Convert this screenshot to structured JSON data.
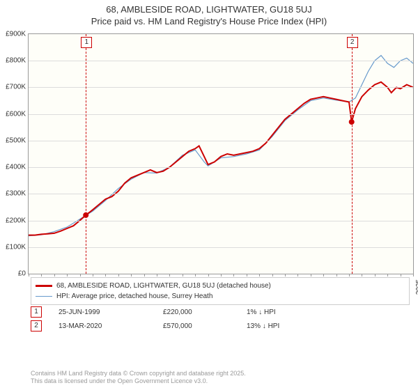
{
  "title_line1": "68, AMBLESIDE ROAD, LIGHTWATER, GU18 5UJ",
  "title_line2": "Price paid vs. HM Land Registry's House Price Index (HPI)",
  "chart": {
    "type": "line",
    "background_color": "#fefef8",
    "grid_color": "#dcdcdc",
    "border_color": "#999999",
    "x_years": [
      1995,
      1996,
      1997,
      1998,
      1999,
      2000,
      2001,
      2002,
      2003,
      2004,
      2005,
      2006,
      2007,
      2008,
      2009,
      2010,
      2011,
      2012,
      2013,
      2014,
      2015,
      2016,
      2017,
      2018,
      2019,
      2020,
      2021,
      2022,
      2023,
      2024,
      2025
    ],
    "y_ticks": [
      0,
      100,
      200,
      300,
      400,
      500,
      600,
      700,
      800,
      900
    ],
    "y_tick_labels": [
      "£0",
      "£100K",
      "£200K",
      "£300K",
      "£400K",
      "£500K",
      "£600K",
      "£700K",
      "£800K",
      "£900K"
    ],
    "ylim": [
      0,
      900
    ],
    "series": [
      {
        "name": "property",
        "label": "68, AMBLESIDE ROAD, LIGHTWATER, GU18 5UJ (detached house)",
        "color": "#cc0000",
        "width": 2,
        "xy": [
          [
            1995,
            145
          ],
          [
            1995.5,
            145
          ],
          [
            1996,
            148
          ],
          [
            1996.5,
            150
          ],
          [
            1997,
            152
          ],
          [
            1997.5,
            160
          ],
          [
            1998,
            170
          ],
          [
            1998.5,
            180
          ],
          [
            1999,
            200
          ],
          [
            1999.47,
            220
          ],
          [
            2000,
            240
          ],
          [
            2000.5,
            260
          ],
          [
            2001,
            280
          ],
          [
            2001.5,
            290
          ],
          [
            2002,
            310
          ],
          [
            2002.5,
            340
          ],
          [
            2003,
            360
          ],
          [
            2003.5,
            370
          ],
          [
            2004,
            380
          ],
          [
            2004.5,
            390
          ],
          [
            2005,
            380
          ],
          [
            2005.5,
            385
          ],
          [
            2006,
            400
          ],
          [
            2006.5,
            420
          ],
          [
            2007,
            440
          ],
          [
            2007.5,
            460
          ],
          [
            2008,
            470
          ],
          [
            2008.3,
            480
          ],
          [
            2008.7,
            440
          ],
          [
            2009,
            410
          ],
          [
            2009.5,
            420
          ],
          [
            2010,
            440
          ],
          [
            2010.5,
            450
          ],
          [
            2011,
            445
          ],
          [
            2011.5,
            450
          ],
          [
            2012,
            455
          ],
          [
            2012.5,
            460
          ],
          [
            2013,
            470
          ],
          [
            2013.5,
            490
          ],
          [
            2014,
            520
          ],
          [
            2014.5,
            550
          ],
          [
            2015,
            580
          ],
          [
            2015.5,
            600
          ],
          [
            2016,
            620
          ],
          [
            2016.5,
            640
          ],
          [
            2017,
            655
          ],
          [
            2017.5,
            660
          ],
          [
            2018,
            665
          ],
          [
            2018.5,
            660
          ],
          [
            2019,
            655
          ],
          [
            2019.5,
            650
          ],
          [
            2020,
            645
          ],
          [
            2020.2,
            570
          ],
          [
            2020.5,
            620
          ],
          [
            2021,
            665
          ],
          [
            2021.5,
            690
          ],
          [
            2022,
            710
          ],
          [
            2022.5,
            720
          ],
          [
            2023,
            700
          ],
          [
            2023.3,
            680
          ],
          [
            2023.7,
            700
          ],
          [
            2024,
            695
          ],
          [
            2024.5,
            710
          ],
          [
            2025,
            700
          ]
        ]
      },
      {
        "name": "hpi",
        "label": "HPI: Average price, detached house, Surrey Heath",
        "color": "#6699cc",
        "width": 1.2,
        "xy": [
          [
            1995,
            142
          ],
          [
            1996,
            146
          ],
          [
            1997,
            158
          ],
          [
            1998,
            175
          ],
          [
            1999,
            205
          ],
          [
            2000,
            235
          ],
          [
            2001,
            275
          ],
          [
            2002,
            320
          ],
          [
            2003,
            355
          ],
          [
            2004,
            380
          ],
          [
            2005,
            378
          ],
          [
            2006,
            400
          ],
          [
            2007,
            445
          ],
          [
            2008,
            465
          ],
          [
            2008.7,
            420
          ],
          [
            2009,
            405
          ],
          [
            2010,
            435
          ],
          [
            2011,
            440
          ],
          [
            2012,
            450
          ],
          [
            2013,
            465
          ],
          [
            2014,
            515
          ],
          [
            2015,
            575
          ],
          [
            2016,
            615
          ],
          [
            2017,
            650
          ],
          [
            2018,
            660
          ],
          [
            2019,
            652
          ],
          [
            2020,
            645
          ],
          [
            2020.5,
            660
          ],
          [
            2021,
            710
          ],
          [
            2021.5,
            760
          ],
          [
            2022,
            800
          ],
          [
            2022.5,
            820
          ],
          [
            2023,
            790
          ],
          [
            2023.5,
            775
          ],
          [
            2024,
            800
          ],
          [
            2024.5,
            810
          ],
          [
            2025,
            790
          ]
        ]
      }
    ],
    "event_lines": [
      {
        "id": 1,
        "x": 1999.47,
        "color": "#cc0000"
      },
      {
        "id": 2,
        "x": 2020.2,
        "color": "#cc0000"
      }
    ],
    "event_markers": [
      {
        "x": 1999.47,
        "y": 220,
        "color": "#cc0000"
      },
      {
        "x": 2020.2,
        "y": 570,
        "color": "#cc0000"
      }
    ]
  },
  "legend": {
    "items": [
      {
        "color": "#cc0000",
        "width": 2,
        "label": "68, AMBLESIDE ROAD, LIGHTWATER, GU18 5UJ (detached house)"
      },
      {
        "color": "#6699cc",
        "width": 1,
        "label": "HPI: Average price, detached house, Surrey Heath"
      }
    ]
  },
  "events": [
    {
      "id": "1",
      "date": "25-JUN-1999",
      "price": "£220,000",
      "change": "1% ↓ HPI"
    },
    {
      "id": "2",
      "date": "13-MAR-2020",
      "price": "£570,000",
      "change": "13% ↓ HPI"
    }
  ],
  "footer_line1": "Contains HM Land Registry data © Crown copyright and database right 2025.",
  "footer_line2": "This data is licensed under the Open Government Licence v3.0."
}
